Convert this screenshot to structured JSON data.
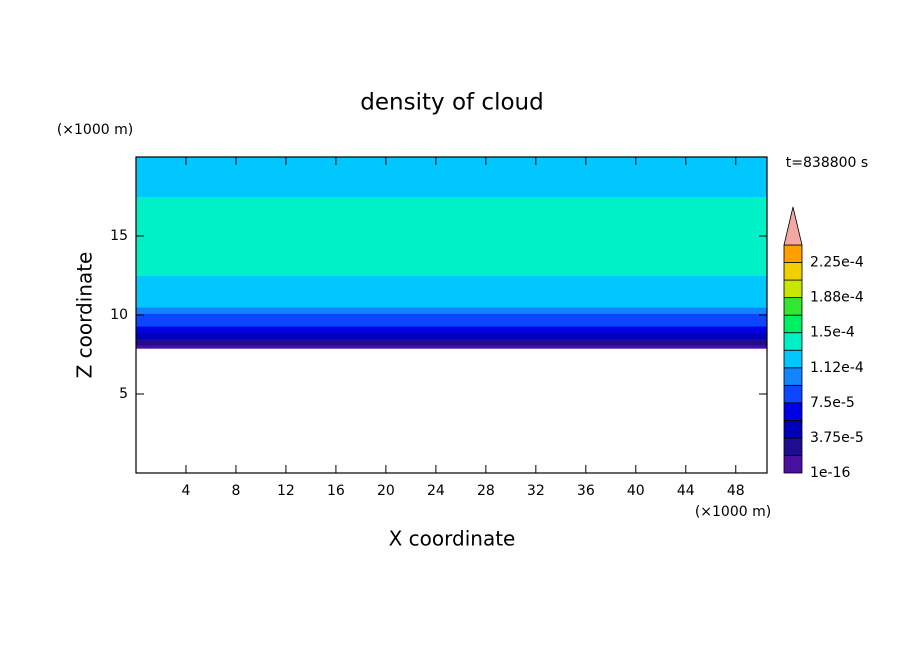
{
  "chart_data": {
    "type": "contour",
    "title": "density of cloud",
    "xlabel": "X coordinate",
    "ylabel": "Z coordinate",
    "x_unit": "(×1000 m)",
    "y_unit": "(×1000 m)",
    "annotation": "t=838800 s",
    "xlim": [
      0,
      50.5
    ],
    "ylim": [
      0,
      20
    ],
    "xticks": [
      4,
      8,
      12,
      16,
      20,
      24,
      28,
      32,
      36,
      40,
      44,
      48
    ],
    "yticks": [
      5,
      10,
      15
    ],
    "profile": {
      "z": [
        7.9,
        8.3,
        8.7,
        9.1,
        9.5,
        9.9,
        10.3,
        10.7,
        11.2,
        12,
        13,
        14,
        15,
        16,
        17,
        18,
        18.7,
        19.3,
        19.9
      ],
      "density": [
        1e-05,
        3e-05,
        5e-05,
        6e-05,
        8e-05,
        9e-05,
        0.0001,
        0.000115,
        0.00012,
        0.000128,
        0.000135,
        0.00014,
        0.000148,
        0.00014,
        0.000135,
        0.000128,
        0.00012,
        0.000118,
        0.000115
      ]
    },
    "levels": [
      0,
      1.875e-05,
      3.75e-05,
      5.625e-05,
      7.5e-05,
      9.375e-05,
      0.0001125,
      0.00013125,
      0.00015,
      0.00016875,
      0.0001875,
      0.00020625,
      0.000225,
      0.00024375
    ],
    "colors": [
      "#4a10a0",
      "#200c90",
      "#0000b8",
      "#0000e6",
      "#0c46ff",
      "#1284ff",
      "#00c8ff",
      "#00f0c8",
      "#00f064",
      "#32e632",
      "#c8e600",
      "#f0d000",
      "#ffa000"
    ],
    "extend_color": "#f4a8a0",
    "colorbar_ticks": [
      {
        "value": 0,
        "label": "1e-16"
      },
      {
        "value": 3.75e-05,
        "label": "3.75e-5"
      },
      {
        "value": 7.5e-05,
        "label": "7.5e-5"
      },
      {
        "value": 0.0001125,
        "label": "1.12e-4"
      },
      {
        "value": 0.00015,
        "label": "1.5e-4"
      },
      {
        "value": 0.0001875,
        "label": "1.88e-4"
      },
      {
        "value": 0.000225,
        "label": "2.25e-4"
      }
    ]
  }
}
